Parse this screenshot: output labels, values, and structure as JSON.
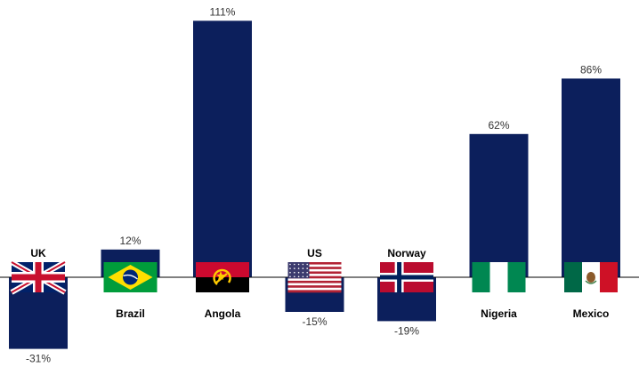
{
  "chart_data": {
    "type": "bar",
    "categories": [
      "UK",
      "Brazil",
      "Angola",
      "US",
      "Norway",
      "Nigeria",
      "Mexico"
    ],
    "values": [
      -31,
      12,
      111,
      -15,
      -19,
      62,
      86
    ],
    "value_labels": [
      "-31%",
      "12%",
      "111%",
      "-15%",
      "-19%",
      "62%",
      "86%"
    ],
    "flag_icons": [
      "uk-flag-icon",
      "brazil-flag-icon",
      "angola-flag-icon",
      "us-flag-icon",
      "norway-flag-icon",
      "nigeria-flag-icon",
      "mexico-flag-icon"
    ],
    "bar_color": "#0c1f5c",
    "title": "",
    "xlabel": "",
    "ylabel": "",
    "ylim": [
      -35,
      115
    ],
    "grid": false,
    "legend": "none"
  }
}
